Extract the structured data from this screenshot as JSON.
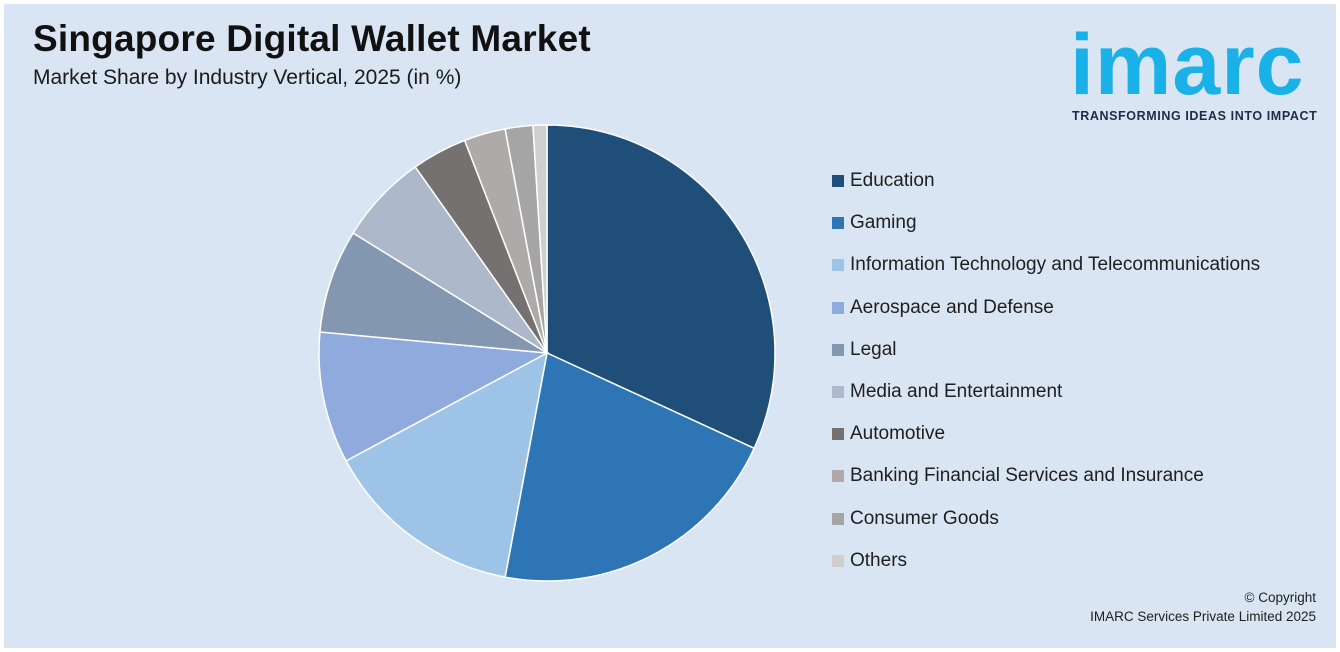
{
  "header": {
    "title": "Singapore Digital Wallet Market",
    "subtitle": "Market Share by Industry Vertical, 2025 (in %)"
  },
  "logo": {
    "wordmark": "imarc",
    "tagline": "TRANSFORMING IDEAS INTO IMPACT",
    "color": "#1ab0e8"
  },
  "chart_data": {
    "type": "pie",
    "title": "Singapore Digital Wallet Market",
    "subtitle": "Market Share by Industry Vertical, 2025 (in %)",
    "legend_position": "right",
    "slices": [
      {
        "label": "Education",
        "value": 32.5,
        "color": "#1f4e79"
      },
      {
        "label": "Gaming",
        "value": 21.5,
        "color": "#2e75b6"
      },
      {
        "label": "Information Technology and Telecommunications",
        "value": 14.5,
        "color": "#9dc3e6"
      },
      {
        "label": "Aerospace and Defense",
        "value": 9.5,
        "color": "#8faadc"
      },
      {
        "label": "Legal",
        "value": 7.5,
        "color": "#8497b0"
      },
      {
        "label": "Media and Entertainment",
        "value": 6.5,
        "color": "#adb9ca"
      },
      {
        "label": "Automotive",
        "value": 4.0,
        "color": "#767171"
      },
      {
        "label": "Banking Financial Services and Insurance",
        "value": 3.0,
        "color": "#aeaaaa"
      },
      {
        "label": "Consumer Goods",
        "value": 2.0,
        "color": "#a5a5a5"
      },
      {
        "label": "Others",
        "value": 1.0,
        "color": "#d0cece"
      }
    ]
  },
  "footer": {
    "copyright_line1": "© Copyright",
    "copyright_line2": "IMARC Services Private Limited 2025"
  }
}
